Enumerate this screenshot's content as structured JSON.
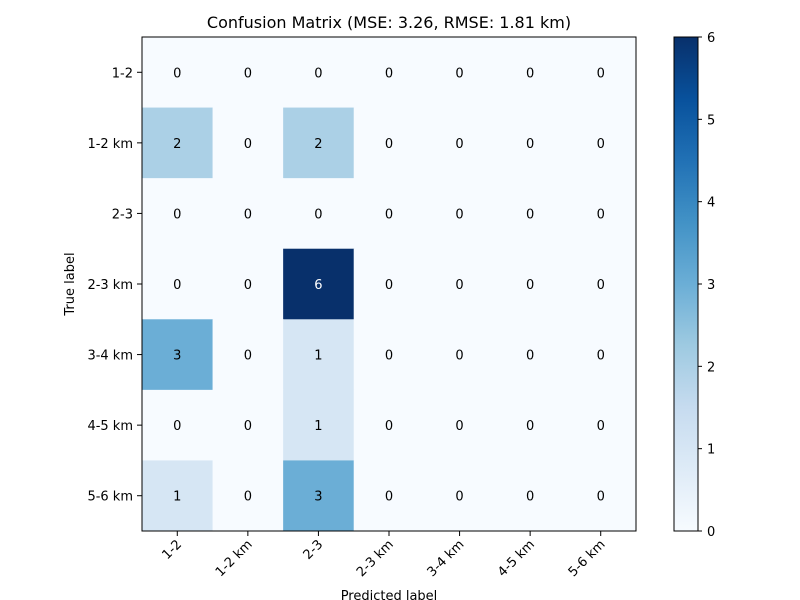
{
  "chart_data": {
    "type": "heatmap",
    "title": "Confusion Matrix (MSE: 3.26, RMSE: 1.81 km)",
    "xlabel": "Predicted label",
    "ylabel": "True label",
    "x_categories": [
      "1-2",
      "1-2 km",
      "2-3",
      "2-3 km",
      "3-4 km",
      "4-5 km",
      "5-6 km"
    ],
    "y_categories": [
      "1-2",
      "1-2 km",
      "2-3",
      "2-3 km",
      "3-4 km",
      "4-5 km",
      "5-6 km"
    ],
    "values": [
      [
        0,
        0,
        0,
        0,
        0,
        0,
        0
      ],
      [
        2,
        0,
        2,
        0,
        0,
        0,
        0
      ],
      [
        0,
        0,
        0,
        0,
        0,
        0,
        0
      ],
      [
        0,
        0,
        6,
        0,
        0,
        0,
        0
      ],
      [
        3,
        0,
        1,
        0,
        0,
        0,
        0
      ],
      [
        0,
        0,
        1,
        0,
        0,
        0,
        0
      ],
      [
        1,
        0,
        3,
        0,
        0,
        0,
        0
      ]
    ],
    "colormap": "Blues",
    "colorbar": {
      "range": [
        0,
        6
      ],
      "ticks": [
        "0",
        "1",
        "2",
        "3",
        "4",
        "5",
        "6"
      ]
    }
  }
}
